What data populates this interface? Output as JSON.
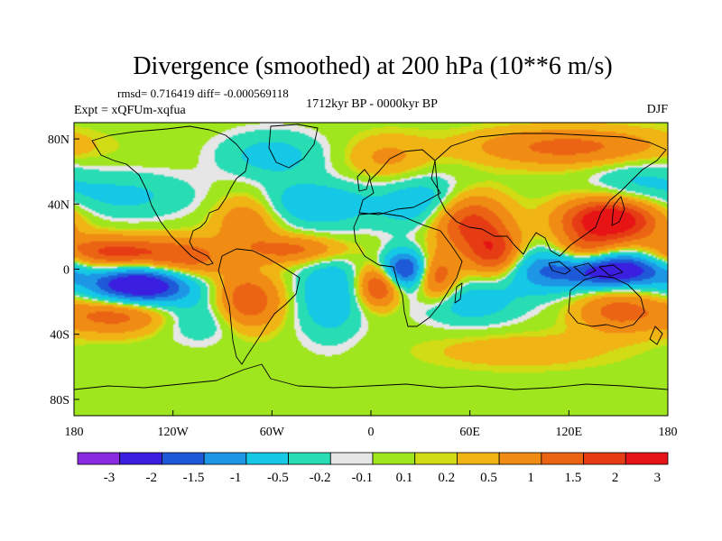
{
  "chart_data": {
    "type": "heatmap",
    "title": "Divergence (smoothed) at 200 hPa (10**6 m/s)",
    "stats_label": "rmsd= 0.716419 diff= -0.000569118",
    "period_label": "1712kyr BP - 0000kyr BP",
    "experiment_label": "Expt = xQFUm-xqfua",
    "season_label": "DJF",
    "x_axis": {
      "range": [
        -180,
        180
      ],
      "ticks": [
        {
          "value": -180,
          "label": "180"
        },
        {
          "value": -120,
          "label": "120W"
        },
        {
          "value": -60,
          "label": "60W"
        },
        {
          "value": 0,
          "label": "0"
        },
        {
          "value": 60,
          "label": "60E"
        },
        {
          "value": 120,
          "label": "120E"
        },
        {
          "value": 180,
          "label": "180"
        }
      ]
    },
    "y_axis": {
      "range": [
        -90,
        90
      ],
      "ticks": [
        {
          "value": 80,
          "label": "80N"
        },
        {
          "value": 40,
          "label": "40N"
        },
        {
          "value": 0,
          "label": "0"
        },
        {
          "value": -40,
          "label": "40S"
        },
        {
          "value": -80,
          "label": "80S"
        }
      ]
    },
    "colorbar": {
      "colors": [
        "#8a2be2",
        "#3a1fe0",
        "#1e5ad8",
        "#1e96e6",
        "#14c8e6",
        "#28dcb4",
        "#e6e6e6",
        "#a0e61e",
        "#d2dc14",
        "#f0b414",
        "#f08c14",
        "#eb6414",
        "#e63c14",
        "#e61414"
      ],
      "labels": [
        "-3",
        "-2",
        "-1.5",
        "-1",
        "-0.5",
        "-0.2",
        "-0.1",
        "0.1",
        "0.2",
        "0.5",
        "1",
        "1.5",
        "2",
        "3"
      ]
    },
    "anomaly_centers": [
      {
        "lon": -140,
        "lat": -10,
        "amp": -3.0,
        "sx": 22,
        "sy": 8
      },
      {
        "lon": -155,
        "lat": 10,
        "amp": 1.8,
        "sx": 28,
        "sy": 7
      },
      {
        "lon": -155,
        "lat": -28,
        "amp": 1.3,
        "sx": 22,
        "sy": 8
      },
      {
        "lon": -110,
        "lat": 5,
        "amp": 1.0,
        "sx": 16,
        "sy": 9
      },
      {
        "lon": -100,
        "lat": -30,
        "amp": -0.6,
        "sx": 20,
        "sy": 10
      },
      {
        "lon": -75,
        "lat": -20,
        "amp": 1.6,
        "sx": 14,
        "sy": 12
      },
      {
        "lon": -75,
        "lat": 30,
        "amp": 1.0,
        "sx": 14,
        "sy": 12
      },
      {
        "lon": -35,
        "lat": 40,
        "amp": -0.9,
        "sx": 26,
        "sy": 10
      },
      {
        "lon": -45,
        "lat": 12,
        "amp": 1.2,
        "sx": 22,
        "sy": 6
      },
      {
        "lon": -25,
        "lat": -15,
        "amp": -1.0,
        "sx": 14,
        "sy": 18
      },
      {
        "lon": 20,
        "lat": 0,
        "amp": -2.3,
        "sx": 10,
        "sy": 8
      },
      {
        "lon": 5,
        "lat": -10,
        "amp": 1.8,
        "sx": 9,
        "sy": 9
      },
      {
        "lon": 40,
        "lat": -5,
        "amp": 1.5,
        "sx": 9,
        "sy": 10
      },
      {
        "lon": 35,
        "lat": 40,
        "amp": -1.0,
        "sx": 20,
        "sy": 12
      },
      {
        "lon": 58,
        "lat": 30,
        "amp": 1.9,
        "sx": 16,
        "sy": 12
      },
      {
        "lon": 75,
        "lat": 10,
        "amp": 1.8,
        "sx": 12,
        "sy": 10
      },
      {
        "lon": 60,
        "lat": -20,
        "amp": -0.8,
        "sx": 22,
        "sy": 10
      },
      {
        "lon": 105,
        "lat": 0,
        "amp": -1.3,
        "sx": 18,
        "sy": 10
      },
      {
        "lon": 148,
        "lat": 0,
        "amp": -3.0,
        "sx": 22,
        "sy": 8
      },
      {
        "lon": 145,
        "lat": 30,
        "amp": 2.8,
        "sx": 20,
        "sy": 9
      },
      {
        "lon": 130,
        "lat": 10,
        "amp": 1.5,
        "sx": 14,
        "sy": 8
      },
      {
        "lon": 150,
        "lat": -25,
        "amp": 1.2,
        "sx": 18,
        "sy": 10
      },
      {
        "lon": 120,
        "lat": 75,
        "amp": 1.2,
        "sx": 40,
        "sy": 8
      },
      {
        "lon": -60,
        "lat": 70,
        "amp": -0.7,
        "sx": 22,
        "sy": 10
      },
      {
        "lon": 10,
        "lat": 68,
        "amp": 0.6,
        "sx": 18,
        "sy": 10
      },
      {
        "lon": 90,
        "lat": -50,
        "amp": 0.4,
        "sx": 40,
        "sy": 8
      },
      {
        "lon": -150,
        "lat": 45,
        "amp": -0.6,
        "sx": 30,
        "sy": 10
      },
      {
        "lon": 160,
        "lat": 55,
        "amp": -0.5,
        "sx": 20,
        "sy": 10
      }
    ]
  }
}
